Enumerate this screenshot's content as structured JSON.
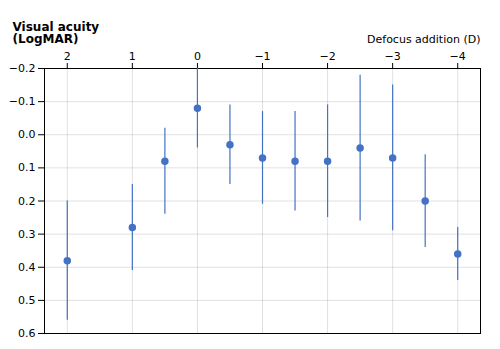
{
  "chart_data": {
    "type": "scatter",
    "x": [
      2,
      1,
      0.5,
      0,
      -0.5,
      -1,
      -1.5,
      -2,
      -2.5,
      -3,
      -3.5,
      -4
    ],
    "values": [
      0.38,
      0.28,
      0.08,
      -0.08,
      0.03,
      0.07,
      0.08,
      0.08,
      0.04,
      0.07,
      0.2,
      0.36
    ],
    "y_err_low": [
      0.18,
      0.13,
      0.1,
      0.12,
      0.12,
      0.14,
      0.15,
      0.17,
      0.22,
      0.22,
      0.14,
      0.08
    ],
    "y_err_high": [
      0.18,
      0.13,
      0.16,
      0.12,
      0.12,
      0.14,
      0.15,
      0.17,
      0.22,
      0.22,
      0.14,
      0.08
    ],
    "color": "#4472C4",
    "xlabel": "Defocus addition (D)",
    "ylabel": "Visual acuity\n(LogMAR)",
    "xlim": [
      2.35,
      -4.35
    ],
    "ylim": [
      0.6,
      -0.2
    ],
    "xticks": [
      2,
      1,
      0,
      {
        "value": -1,
        "label": "−1"
      },
      {
        "value": -2,
        "label": "−2"
      },
      {
        "value": -3,
        "label": "−3"
      },
      {
        "value": -4,
        "label": "−4"
      }
    ],
    "yticks": [
      {
        "value": -0.2,
        "label": "−0.2"
      },
      {
        "value": -0.1,
        "label": "−0.1"
      },
      {
        "value": 0,
        "label": "0.0"
      },
      0.1,
      0.2,
      0.3,
      0.4,
      0.5,
      0.6
    ],
    "grid": true
  }
}
